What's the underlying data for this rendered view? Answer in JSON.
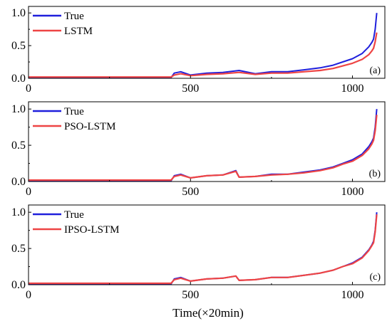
{
  "chart_data": [
    {
      "type": "line",
      "panel_tag": "(a)",
      "xlim": [
        0,
        1100
      ],
      "ylim": [
        0,
        1.1
      ],
      "xticks": [
        "0",
        "500",
        "1000"
      ],
      "yticks": [
        "0.0",
        "0.5",
        "1.0"
      ],
      "legend_placement": "top-left",
      "grid": false,
      "series": [
        {
          "name": "True",
          "color": "#1f1fdc",
          "x": [
            0,
            440,
            450,
            470,
            500,
            550,
            600,
            650,
            700,
            750,
            800,
            850,
            900,
            940,
            970,
            1000,
            1030,
            1050,
            1060,
            1065,
            1070,
            1075
          ],
          "y": [
            0.01,
            0.01,
            0.08,
            0.1,
            0.05,
            0.08,
            0.09,
            0.12,
            0.07,
            0.1,
            0.1,
            0.13,
            0.16,
            0.2,
            0.25,
            0.3,
            0.38,
            0.48,
            0.55,
            0.6,
            0.75,
            1.0
          ]
        },
        {
          "name": "LSTM",
          "color": "#ee4444",
          "x": [
            0,
            440,
            450,
            470,
            500,
            550,
            600,
            650,
            700,
            750,
            800,
            850,
            900,
            940,
            970,
            1000,
            1030,
            1050,
            1060,
            1065,
            1070,
            1075
          ],
          "y": [
            0.02,
            0.02,
            0.05,
            0.07,
            0.04,
            0.06,
            0.07,
            0.09,
            0.06,
            0.08,
            0.08,
            0.1,
            0.12,
            0.15,
            0.19,
            0.23,
            0.29,
            0.36,
            0.42,
            0.46,
            0.56,
            0.7
          ]
        }
      ]
    },
    {
      "type": "line",
      "panel_tag": "(b)",
      "xlim": [
        0,
        1100
      ],
      "ylim": [
        0,
        1.1
      ],
      "xticks": [
        "0",
        "500",
        "1000"
      ],
      "yticks": [
        "0.0",
        "0.5",
        "1.0"
      ],
      "legend_placement": "top-left",
      "grid": false,
      "series": [
        {
          "name": "True",
          "color": "#1f1fdc",
          "x": [
            0,
            440,
            450,
            470,
            500,
            550,
            600,
            640,
            650,
            700,
            750,
            800,
            850,
            900,
            940,
            970,
            1000,
            1030,
            1050,
            1060,
            1065,
            1070,
            1075
          ],
          "y": [
            0.01,
            0.01,
            0.08,
            0.1,
            0.05,
            0.08,
            0.09,
            0.15,
            0.06,
            0.07,
            0.1,
            0.1,
            0.13,
            0.16,
            0.2,
            0.25,
            0.3,
            0.38,
            0.48,
            0.55,
            0.6,
            0.75,
            1.0
          ]
        },
        {
          "name": "PSO-LSTM",
          "color": "#ee4444",
          "x": [
            0,
            440,
            450,
            470,
            500,
            550,
            600,
            640,
            650,
            700,
            750,
            800,
            850,
            900,
            940,
            970,
            1000,
            1030,
            1050,
            1060,
            1065,
            1070,
            1075
          ],
          "y": [
            0.02,
            0.02,
            0.07,
            0.09,
            0.05,
            0.08,
            0.09,
            0.14,
            0.06,
            0.07,
            0.09,
            0.1,
            0.12,
            0.15,
            0.19,
            0.24,
            0.28,
            0.36,
            0.45,
            0.52,
            0.57,
            0.7,
            0.92
          ]
        }
      ]
    },
    {
      "type": "line",
      "panel_tag": "(c)",
      "xlim": [
        0,
        1100
      ],
      "ylim": [
        0,
        1.1
      ],
      "xticks": [
        "0",
        "500",
        "1000"
      ],
      "yticks": [
        "0.0",
        "0.5",
        "1.0"
      ],
      "legend_placement": "top-left",
      "grid": false,
      "series": [
        {
          "name": "True",
          "color": "#1f1fdc",
          "x": [
            0,
            440,
            450,
            470,
            500,
            550,
            600,
            640,
            650,
            700,
            750,
            800,
            850,
            900,
            940,
            970,
            1000,
            1030,
            1050,
            1060,
            1065,
            1070,
            1075
          ],
          "y": [
            0.01,
            0.01,
            0.08,
            0.1,
            0.05,
            0.08,
            0.09,
            0.12,
            0.06,
            0.07,
            0.1,
            0.1,
            0.13,
            0.16,
            0.2,
            0.25,
            0.3,
            0.38,
            0.48,
            0.55,
            0.6,
            0.75,
            1.0
          ]
        },
        {
          "name": "IPSO-LSTM",
          "color": "#ee4444",
          "x": [
            0,
            440,
            450,
            470,
            500,
            550,
            600,
            640,
            650,
            700,
            750,
            800,
            850,
            900,
            940,
            970,
            1000,
            1030,
            1050,
            1060,
            1065,
            1070,
            1075
          ],
          "y": [
            0.02,
            0.02,
            0.07,
            0.09,
            0.05,
            0.08,
            0.09,
            0.12,
            0.06,
            0.07,
            0.1,
            0.1,
            0.13,
            0.16,
            0.2,
            0.25,
            0.29,
            0.37,
            0.47,
            0.54,
            0.58,
            0.73,
            0.97
          ]
        }
      ]
    }
  ],
  "shared_xlabel": "Time(×20min)"
}
